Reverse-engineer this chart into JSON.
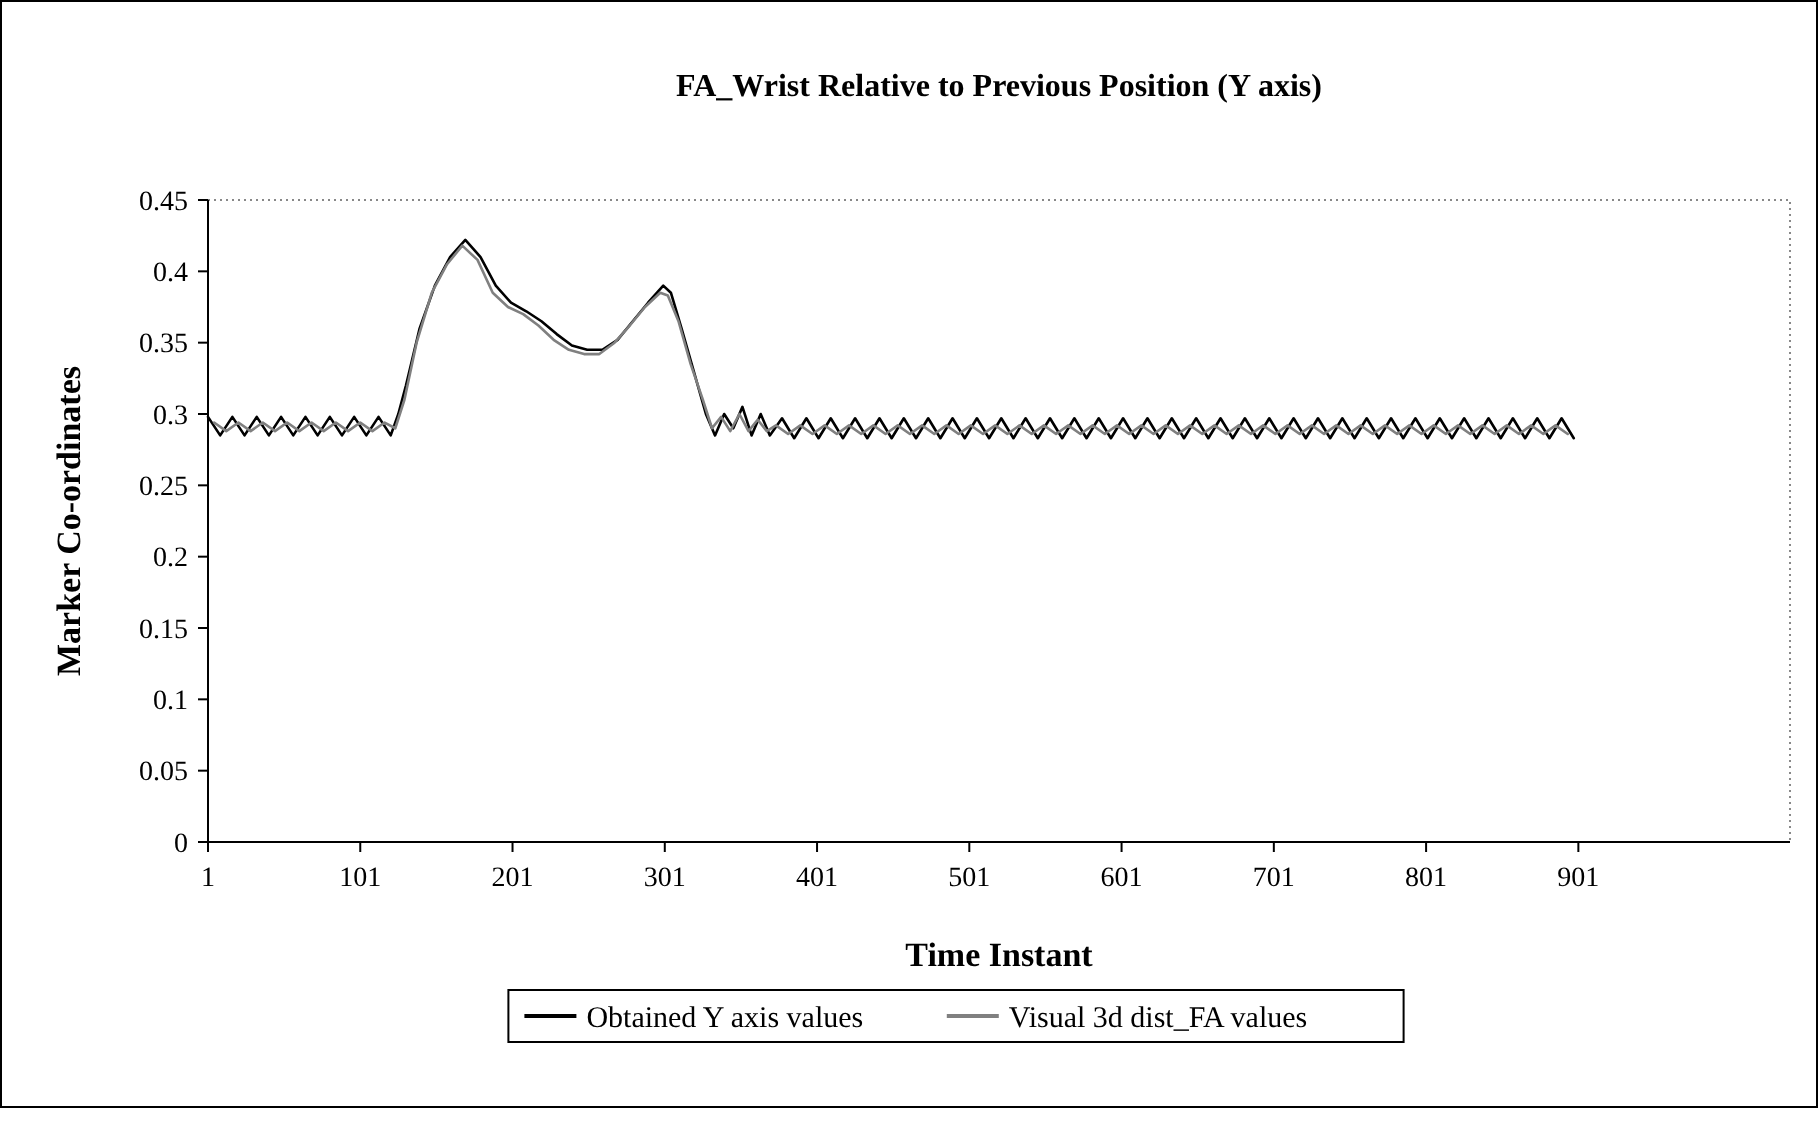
{
  "chart_data": {
    "type": "line",
    "title": "FA_Wrist Relative to Previous Position (Y axis)",
    "xlabel": "Time Instant",
    "ylabel": "Marker Co-ordinates",
    "xlim": [
      1,
      1040
    ],
    "xticks": [
      1,
      101,
      201,
      301,
      401,
      501,
      601,
      701,
      801,
      901
    ],
    "ylim": [
      0,
      0.45
    ],
    "yticks": [
      0,
      0.05,
      0.1,
      0.15,
      0.2,
      0.25,
      0.3,
      0.35,
      0.4,
      0.45
    ],
    "legend": "bottom",
    "series": [
      {
        "name": "Obtained Y axis values",
        "color": "#000000",
        "x": [
          1,
          9,
          17,
          25,
          33,
          41,
          49,
          57,
          65,
          73,
          81,
          89,
          97,
          105,
          113,
          121,
          126,
          131,
          140,
          150,
          160,
          170,
          180,
          190,
          200,
          210,
          220,
          230,
          240,
          250,
          260,
          270,
          280,
          290,
          300,
          305,
          312,
          320,
          328,
          334,
          340,
          346,
          352,
          358,
          364,
          370,
          378,
          386,
          394,
          402,
          410,
          418,
          426,
          434,
          442,
          450,
          458,
          466,
          474,
          482,
          490,
          498,
          506,
          514,
          522,
          530,
          538,
          546,
          554,
          562,
          570,
          578,
          586,
          594,
          602,
          610,
          618,
          626,
          634,
          642,
          650,
          658,
          666,
          674,
          682,
          690,
          698,
          706,
          714,
          722,
          730,
          738,
          746,
          754,
          762,
          770,
          778,
          786,
          794,
          802,
          810,
          818,
          826,
          834,
          842,
          850,
          858,
          866,
          874,
          882,
          890,
          898
        ],
        "values": [
          0.298,
          0.285,
          0.298,
          0.285,
          0.298,
          0.285,
          0.298,
          0.285,
          0.298,
          0.285,
          0.298,
          0.285,
          0.298,
          0.285,
          0.298,
          0.285,
          0.3,
          0.32,
          0.36,
          0.39,
          0.41,
          0.422,
          0.41,
          0.39,
          0.378,
          0.372,
          0.365,
          0.356,
          0.348,
          0.345,
          0.345,
          0.352,
          0.365,
          0.378,
          0.39,
          0.385,
          0.36,
          0.33,
          0.3,
          0.285,
          0.3,
          0.29,
          0.305,
          0.285,
          0.3,
          0.285,
          0.297,
          0.283,
          0.297,
          0.283,
          0.297,
          0.283,
          0.297,
          0.283,
          0.297,
          0.283,
          0.297,
          0.283,
          0.297,
          0.283,
          0.297,
          0.283,
          0.297,
          0.283,
          0.297,
          0.283,
          0.297,
          0.283,
          0.297,
          0.283,
          0.297,
          0.283,
          0.297,
          0.283,
          0.297,
          0.283,
          0.297,
          0.283,
          0.297,
          0.283,
          0.297,
          0.283,
          0.297,
          0.283,
          0.297,
          0.283,
          0.297,
          0.283,
          0.297,
          0.283,
          0.297,
          0.283,
          0.297,
          0.283,
          0.297,
          0.283,
          0.297,
          0.283,
          0.297,
          0.283,
          0.297,
          0.283,
          0.297,
          0.283,
          0.297,
          0.283,
          0.297,
          0.283,
          0.297,
          0.283,
          0.297,
          0.283
        ]
      },
      {
        "name": "Visual 3d dist_FA values",
        "color": "#808080",
        "x": [
          5,
          13,
          21,
          29,
          37,
          45,
          53,
          61,
          69,
          77,
          85,
          93,
          101,
          109,
          117,
          124,
          130,
          138,
          148,
          158,
          168,
          178,
          188,
          198,
          208,
          218,
          228,
          238,
          248,
          258,
          268,
          278,
          288,
          298,
          303,
          310,
          318,
          326,
          332,
          338,
          344,
          350,
          356,
          362,
          368,
          374,
          382,
          390,
          398,
          406,
          414,
          422,
          430,
          438,
          446,
          454,
          462,
          470,
          478,
          486,
          494,
          502,
          510,
          518,
          526,
          534,
          542,
          550,
          558,
          566,
          574,
          582,
          590,
          598,
          606,
          614,
          622,
          630,
          638,
          646,
          654,
          662,
          670,
          678,
          686,
          694,
          702,
          710,
          718,
          726,
          734,
          742,
          750,
          758,
          766,
          774,
          782,
          790,
          798,
          806,
          814,
          822,
          830,
          838,
          846,
          854,
          862,
          870,
          878,
          886,
          894
        ],
        "values": [
          0.294,
          0.288,
          0.294,
          0.288,
          0.294,
          0.288,
          0.294,
          0.288,
          0.294,
          0.288,
          0.294,
          0.288,
          0.294,
          0.288,
          0.294,
          0.29,
          0.31,
          0.35,
          0.385,
          0.405,
          0.418,
          0.408,
          0.385,
          0.375,
          0.37,
          0.362,
          0.352,
          0.345,
          0.342,
          0.342,
          0.35,
          0.362,
          0.375,
          0.385,
          0.383,
          0.365,
          0.335,
          0.31,
          0.29,
          0.298,
          0.288,
          0.3,
          0.288,
          0.296,
          0.288,
          0.292,
          0.286,
          0.292,
          0.286,
          0.292,
          0.286,
          0.292,
          0.286,
          0.292,
          0.286,
          0.292,
          0.286,
          0.292,
          0.286,
          0.292,
          0.286,
          0.292,
          0.286,
          0.292,
          0.286,
          0.292,
          0.286,
          0.292,
          0.286,
          0.292,
          0.286,
          0.292,
          0.286,
          0.292,
          0.286,
          0.292,
          0.286,
          0.292,
          0.286,
          0.292,
          0.286,
          0.292,
          0.286,
          0.292,
          0.286,
          0.292,
          0.286,
          0.292,
          0.286,
          0.292,
          0.286,
          0.292,
          0.286,
          0.292,
          0.286,
          0.292,
          0.286,
          0.292,
          0.286,
          0.292,
          0.286,
          0.292,
          0.286,
          0.292,
          0.286,
          0.292,
          0.286,
          0.292,
          0.286,
          0.292,
          0.286
        ]
      }
    ]
  }
}
